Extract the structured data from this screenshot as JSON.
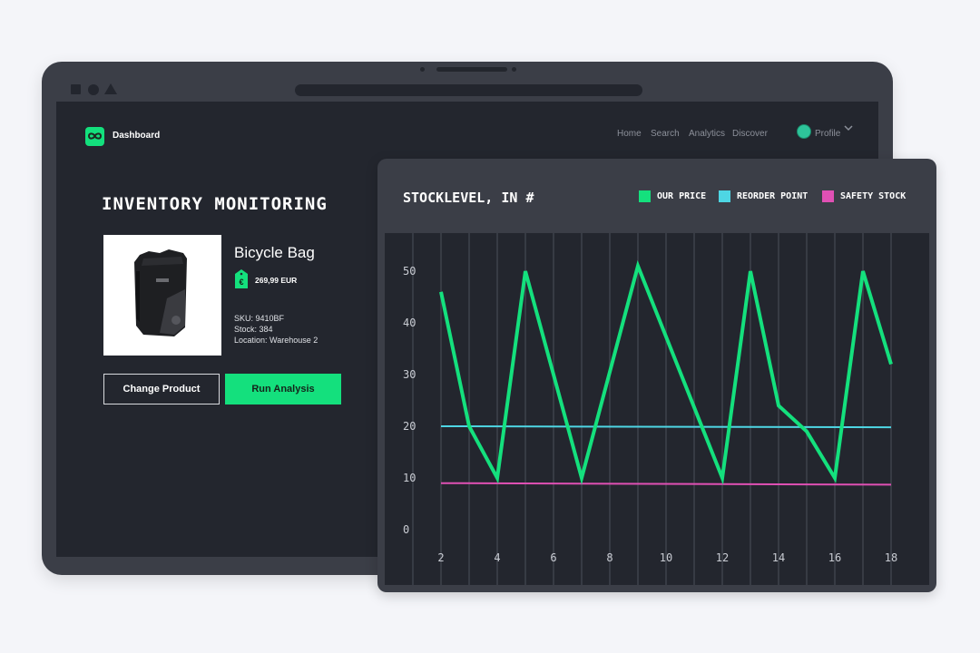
{
  "app": {
    "brand": "Dashboard",
    "nav": [
      "Home",
      "Search",
      "Analytics",
      "Discover"
    ],
    "profile": "Profile"
  },
  "page": {
    "title": "INVENTORY MONITORING"
  },
  "product": {
    "name": "Bicycle Bag",
    "price": "269,99 EUR",
    "sku": "SKU: 9410BF",
    "stock": "Stock: 384",
    "location": "Location: Warehouse 2"
  },
  "actions": {
    "change": "Change Product",
    "run": "Run Analysis"
  },
  "colors": {
    "accent": "#14e07d",
    "reorder": "#4ed6e4",
    "safety": "#e050b4"
  },
  "chart_data": {
    "type": "line",
    "title": "STOCKLEVEL, IN #",
    "legend_position": "top-right",
    "grid": "vertical",
    "xlim": [
      1,
      18
    ],
    "ylim": [
      0,
      55
    ],
    "x_ticks": [
      2,
      4,
      6,
      8,
      10,
      12,
      14,
      16,
      18
    ],
    "y_ticks": [
      0,
      10,
      20,
      30,
      40,
      50
    ],
    "series": [
      {
        "name": "OUR PRICE",
        "color": "#14e07d",
        "x": [
          2,
          3,
          4,
          5,
          7,
          9,
          12,
          13,
          14,
          15,
          16,
          17,
          18
        ],
        "y": [
          46,
          20,
          10,
          50,
          10,
          51,
          10,
          50,
          24,
          19,
          10,
          50,
          32
        ]
      },
      {
        "name": "REORDER POINT",
        "color": "#4ed6e4",
        "x": [
          2,
          18
        ],
        "y": [
          20,
          19.8
        ]
      },
      {
        "name": "SAFETY STOCK",
        "color": "#e050b4",
        "x": [
          2,
          18
        ],
        "y": [
          9,
          8.7
        ]
      }
    ]
  }
}
